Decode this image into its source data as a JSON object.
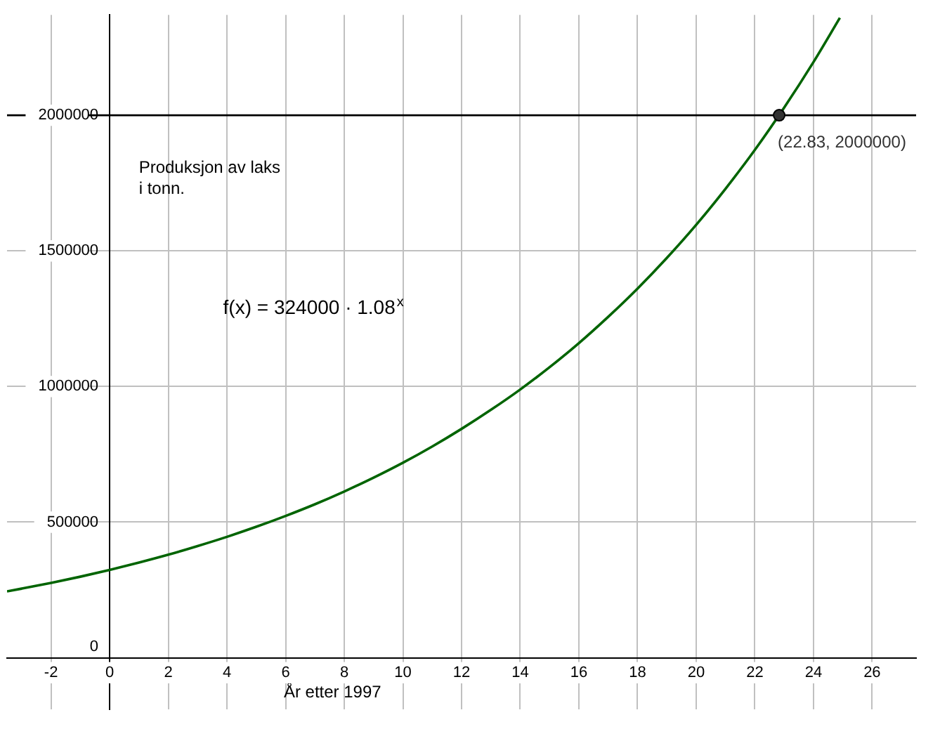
{
  "chart_data": {
    "type": "line",
    "xlabel": "År etter 1997",
    "x": [
      -3.5,
      -3,
      -2,
      -1,
      0,
      1,
      2,
      3,
      4,
      5,
      6,
      7,
      8,
      9,
      10,
      11,
      12,
      13,
      14,
      15,
      16,
      17,
      18,
      19,
      20,
      21,
      22,
      23,
      24,
      24.9
    ],
    "series": [
      {
        "type": "line",
        "color": "#006400",
        "values": [
          245000,
          255000,
          276000,
          299000,
          324000,
          351000,
          380000,
          412000,
          446000,
          483000,
          523000,
          566000,
          613000,
          664000,
          719000,
          779000,
          844000,
          914000,
          989000,
          1071000,
          1160000,
          1257000,
          1361000,
          1474000,
          1596000,
          1729000,
          1872000,
          2028000,
          2196000,
          2359000
        ]
      },
      {
        "type": "scatter",
        "color": "#333333",
        "x": [
          22.83
        ],
        "values": [
          2000000
        ],
        "marker": "circle"
      }
    ],
    "xlim": [
      -3.5,
      27.5
    ],
    "ylim": [
      -190000,
      2370000
    ],
    "xticks": [
      -2,
      0,
      2,
      4,
      6,
      8,
      10,
      12,
      14,
      16,
      18,
      20,
      22,
      24,
      26
    ],
    "yticks": [
      0,
      500000,
      1000000,
      1500000,
      2000000
    ],
    "grid": true,
    "ref_lines": [
      {
        "axis": "y",
        "value": 2000000,
        "color": "#000000"
      }
    ],
    "annotations": [
      "Produksjon av laks\ni tonn.",
      "f(x) = 324000 · 1.08$^{x}$",
      {
        "text": "(22.83, 2000000)",
        "x": 22.83,
        "y": 2000000
      }
    ]
  }
}
